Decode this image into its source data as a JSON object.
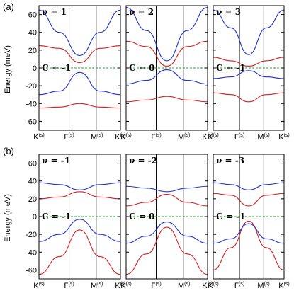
{
  "figure": {
    "ylabel": "Energy (meV)",
    "panel_row_labels": [
      "(a)",
      "(b)"
    ]
  },
  "chart_data": [
    {
      "type": "line",
      "panel": "a1",
      "nu_label": "ν = 1",
      "chern_label": "C = -1",
      "ylim": [
        -70,
        70
      ],
      "yticks": [
        -60,
        -40,
        -20,
        0,
        20,
        40,
        60
      ],
      "xticks": [
        "K(s)",
        "Γ(s)",
        "M(s)",
        "K(s)"
      ],
      "fermi_level": 0,
      "series": [
        {
          "color": "#d42020",
          "points": [
            [
              0,
              -45
            ],
            [
              0.25,
              -44
            ],
            [
              0.5,
              -40
            ],
            [
              0.75,
              -44
            ],
            [
              1,
              -45
            ]
          ]
        },
        {
          "color": "#2030d0",
          "points": [
            [
              0,
              -30
            ],
            [
              0.25,
              -26
            ],
            [
              0.5,
              -5
            ],
            [
              0.75,
              -26
            ],
            [
              1,
              -30
            ]
          ]
        },
        {
          "color": "#d42020",
          "points": [
            [
              0,
              25
            ],
            [
              0.25,
              22
            ],
            [
              0.5,
              6
            ],
            [
              0.75,
              22
            ],
            [
              1,
              25
            ]
          ]
        },
        {
          "color": "#2030d0",
          "points": [
            [
              0,
              65
            ],
            [
              0.25,
              40
            ],
            [
              0.5,
              14
            ],
            [
              0.75,
              40
            ],
            [
              1,
              65
            ]
          ]
        }
      ]
    },
    {
      "type": "line",
      "panel": "a2",
      "nu_label": "ν = 2",
      "chern_label": "C = 0",
      "ylim": [
        -70,
        70
      ],
      "yticks": [
        -60,
        -40,
        -20,
        0,
        20,
        40,
        60
      ],
      "xticks": [
        "K(s)",
        "Γ(s)",
        "M(s)",
        "K(s)"
      ],
      "fermi_level": 0,
      "series": [
        {
          "color": "#d42020",
          "points": [
            [
              0,
              -38
            ],
            [
              0.25,
              -36
            ],
            [
              0.5,
              -32
            ],
            [
              0.75,
              -36
            ],
            [
              1,
              -38
            ]
          ]
        },
        {
          "color": "#2030d0",
          "points": [
            [
              0,
              -18
            ],
            [
              0.25,
              -14
            ],
            [
              0.5,
              -2
            ],
            [
              0.75,
              -14
            ],
            [
              1,
              -18
            ]
          ]
        },
        {
          "color": "#d42020",
          "points": [
            [
              0,
              30
            ],
            [
              0.25,
              24
            ],
            [
              0.5,
              2
            ],
            [
              0.75,
              24
            ],
            [
              1,
              30
            ]
          ]
        },
        {
          "color": "#2030d0",
          "points": [
            [
              0,
              68
            ],
            [
              0.25,
              42
            ],
            [
              0.5,
              8
            ],
            [
              0.75,
              42
            ],
            [
              1,
              68
            ]
          ]
        }
      ]
    },
    {
      "type": "line",
      "panel": "a3",
      "nu_label": "ν = 3",
      "chern_label": "C = -1",
      "ylim": [
        -70,
        70
      ],
      "yticks": [
        -60,
        -40,
        -20,
        0,
        20,
        40,
        60
      ],
      "xticks": [
        "K(s)",
        "Γ(s)",
        "M(s)",
        "K(s)"
      ],
      "fermi_level": 0,
      "series": [
        {
          "color": "#d42020",
          "points": [
            [
              0,
              -28
            ],
            [
              0.25,
              -30
            ],
            [
              0.5,
              -38
            ],
            [
              0.75,
              -30
            ],
            [
              1,
              -28
            ]
          ]
        },
        {
          "color": "#2030d0",
          "points": [
            [
              0,
              -12
            ],
            [
              0.25,
              -10
            ],
            [
              0.5,
              -3
            ],
            [
              0.75,
              -10
            ],
            [
              1,
              -12
            ]
          ]
        },
        {
          "color": "#d42020",
          "points": [
            [
              0,
              12
            ],
            [
              0.25,
              8
            ],
            [
              0.5,
              2
            ],
            [
              0.75,
              8
            ],
            [
              1,
              12
            ]
          ]
        },
        {
          "color": "#2030d0",
          "points": [
            [
              0,
              65
            ],
            [
              0.25,
              45
            ],
            [
              0.5,
              15
            ],
            [
              0.75,
              45
            ],
            [
              1,
              65
            ]
          ]
        }
      ]
    },
    {
      "type": "line",
      "panel": "b1",
      "nu_label": "ν = -1",
      "chern_label": "C = -1",
      "ylim": [
        -70,
        70
      ],
      "yticks": [
        -60,
        -40,
        -20,
        0,
        20,
        40,
        60
      ],
      "xticks": [
        "K(s)",
        "Γ(s)",
        "M(s)",
        "K(s)"
      ],
      "fermi_level": 0,
      "series": [
        {
          "color": "#d42020",
          "points": [
            [
              0,
              -65
            ],
            [
              0.25,
              -45
            ],
            [
              0.5,
              -15
            ],
            [
              0.75,
              -45
            ],
            [
              1,
              -65
            ]
          ]
        },
        {
          "color": "#2030d0",
          "points": [
            [
              0,
              -28
            ],
            [
              0.25,
              -20
            ],
            [
              0.5,
              -3
            ],
            [
              0.75,
              -20
            ],
            [
              1,
              -28
            ]
          ]
        },
        {
          "color": "#d42020",
          "points": [
            [
              0,
              20
            ],
            [
              0.25,
              22
            ],
            [
              0.5,
              28
            ],
            [
              0.75,
              22
            ],
            [
              1,
              20
            ]
          ]
        },
        {
          "color": "#2030d0",
          "points": [
            [
              0,
              38
            ],
            [
              0.25,
              36
            ],
            [
              0.5,
              30
            ],
            [
              0.75,
              36
            ],
            [
              1,
              38
            ]
          ]
        }
      ]
    },
    {
      "type": "line",
      "panel": "b2",
      "nu_label": "ν = -2",
      "chern_label": "C = 0",
      "ylim": [
        -70,
        70
      ],
      "yticks": [
        -60,
        -40,
        -20,
        0,
        20,
        40,
        60
      ],
      "xticks": [
        "K(s)",
        "Γ(s)",
        "M(s)",
        "K(s)"
      ],
      "fermi_level": 0,
      "series": [
        {
          "color": "#d42020",
          "points": [
            [
              0,
              -65
            ],
            [
              0.25,
              -42
            ],
            [
              0.5,
              -12
            ],
            [
              0.75,
              -42
            ],
            [
              1,
              -65
            ]
          ]
        },
        {
          "color": "#2030d0",
          "points": [
            [
              0,
              -30
            ],
            [
              0.25,
              -22
            ],
            [
              0.5,
              -6
            ],
            [
              0.75,
              -22
            ],
            [
              1,
              -30
            ]
          ]
        },
        {
          "color": "#d42020",
          "points": [
            [
              0,
              12
            ],
            [
              0.25,
              16
            ],
            [
              0.5,
              25
            ],
            [
              0.75,
              16
            ],
            [
              1,
              12
            ]
          ]
        },
        {
          "color": "#2030d0",
          "points": [
            [
              0,
              34
            ],
            [
              0.25,
              32
            ],
            [
              0.5,
              28
            ],
            [
              0.75,
              32
            ],
            [
              1,
              34
            ]
          ]
        }
      ]
    },
    {
      "type": "line",
      "panel": "b3",
      "nu_label": "ν = -3",
      "chern_label": "C = -1",
      "ylim": [
        -70,
        70
      ],
      "yticks": [
        -60,
        -40,
        -20,
        0,
        20,
        40,
        60
      ],
      "xticks": [
        "K(s)",
        "Γ(s)",
        "M(s)",
        "K(s)"
      ],
      "fermi_level": 0,
      "series": [
        {
          "color": "#d42020",
          "points": [
            [
              0,
              -60
            ],
            [
              0.25,
              -35
            ],
            [
              0.5,
              -5
            ],
            [
              0.75,
              -35
            ],
            [
              1,
              -60
            ]
          ]
        },
        {
          "color": "#2030d0",
          "points": [
            [
              0,
              -30
            ],
            [
              0.25,
              -25
            ],
            [
              0.5,
              -8
            ],
            [
              0.75,
              -25
            ],
            [
              1,
              -30
            ]
          ]
        },
        {
          "color": "#d42020",
          "points": [
            [
              0,
              26
            ],
            [
              0.25,
              24
            ],
            [
              0.5,
              12
            ],
            [
              0.75,
              24
            ],
            [
              1,
              26
            ]
          ]
        },
        {
          "color": "#2030d0",
          "points": [
            [
              0,
              38
            ],
            [
              0.25,
              36
            ],
            [
              0.5,
              30
            ],
            [
              0.75,
              36
            ],
            [
              1,
              38
            ]
          ]
        }
      ]
    }
  ]
}
